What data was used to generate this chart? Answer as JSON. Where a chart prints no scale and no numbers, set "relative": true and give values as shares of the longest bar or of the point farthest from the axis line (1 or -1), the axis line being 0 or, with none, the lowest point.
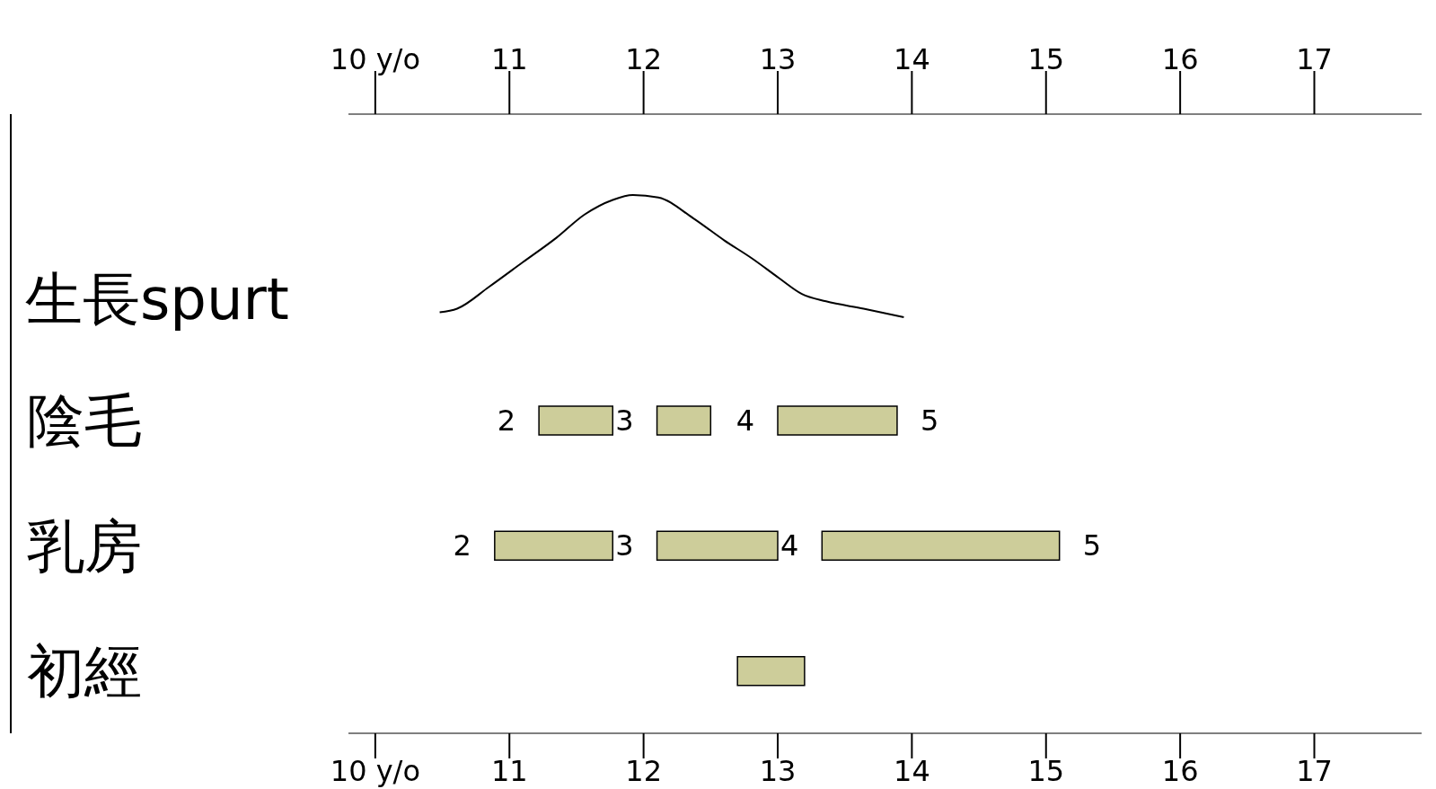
{
  "chart_data": [
    {
      "type": "line",
      "relative": true,
      "ylabel": "生長spurt",
      "marker": "none",
      "x": [
        10.48,
        10.61,
        10.85,
        11.1,
        11.35,
        11.56,
        11.77,
        11.92,
        12.11,
        12.37,
        12.6,
        12.81,
        13.01,
        13.18,
        13.36,
        13.64,
        13.94
      ],
      "series": [
        {
          "color": "#000000",
          "values": [
            0.04,
            0.07,
            0.25,
            0.45,
            0.65,
            0.84,
            0.96,
            1,
            0.98,
            0.81,
            0.63,
            0.48,
            0.32,
            0.19,
            0.13,
            0.07,
            0
          ]
        }
      ],
      "xlim": [
        9.8,
        17.8
      ],
      "xticks": [
        {
          "value": 10,
          "label": "10 y/o"
        },
        11,
        12,
        13,
        14,
        15,
        16,
        17
      ]
    },
    {
      "type": "bar",
      "orientation": "horizontal",
      "categories": [
        "陰毛",
        "乳房",
        "初經"
      ],
      "series": [
        {
          "color": "#cdcd9a",
          "values": [
            0.55,
            0.88,
            0.5
          ],
          "base": [
            11.22,
            10.89,
            12.7
          ]
        },
        {
          "color": "#cdcd9a",
          "values": [
            0.4,
            0.9,
            null
          ],
          "base": [
            12.1,
            12.1,
            null
          ]
        },
        {
          "color": "#cdcd9a",
          "values": [
            0.89,
            1.77,
            null
          ],
          "base": [
            13.0,
            13.33,
            null
          ]
        }
      ],
      "annotations": [
        {
          "text": "2",
          "x": 11.22,
          "y": "陰毛"
        },
        {
          "text": "3",
          "x": 12.1,
          "y": "陰毛"
        },
        {
          "text": "4",
          "x": 13.0,
          "y": "陰毛"
        },
        {
          "text": "5",
          "x": 13.89,
          "y": "陰毛"
        },
        {
          "text": "2",
          "x": 10.89,
          "y": "乳房"
        },
        {
          "text": "3",
          "x": 12.1,
          "y": "乳房"
        },
        {
          "text": "4",
          "x": 13.33,
          "y": "乳房"
        },
        {
          "text": "5",
          "x": 15.1,
          "y": "乳房"
        }
      ],
      "xlim": [
        9.8,
        17.8
      ],
      "xticks": [
        {
          "value": 10,
          "label": "10 y/o"
        },
        11,
        12,
        13,
        14,
        15,
        16,
        17
      ]
    }
  ]
}
